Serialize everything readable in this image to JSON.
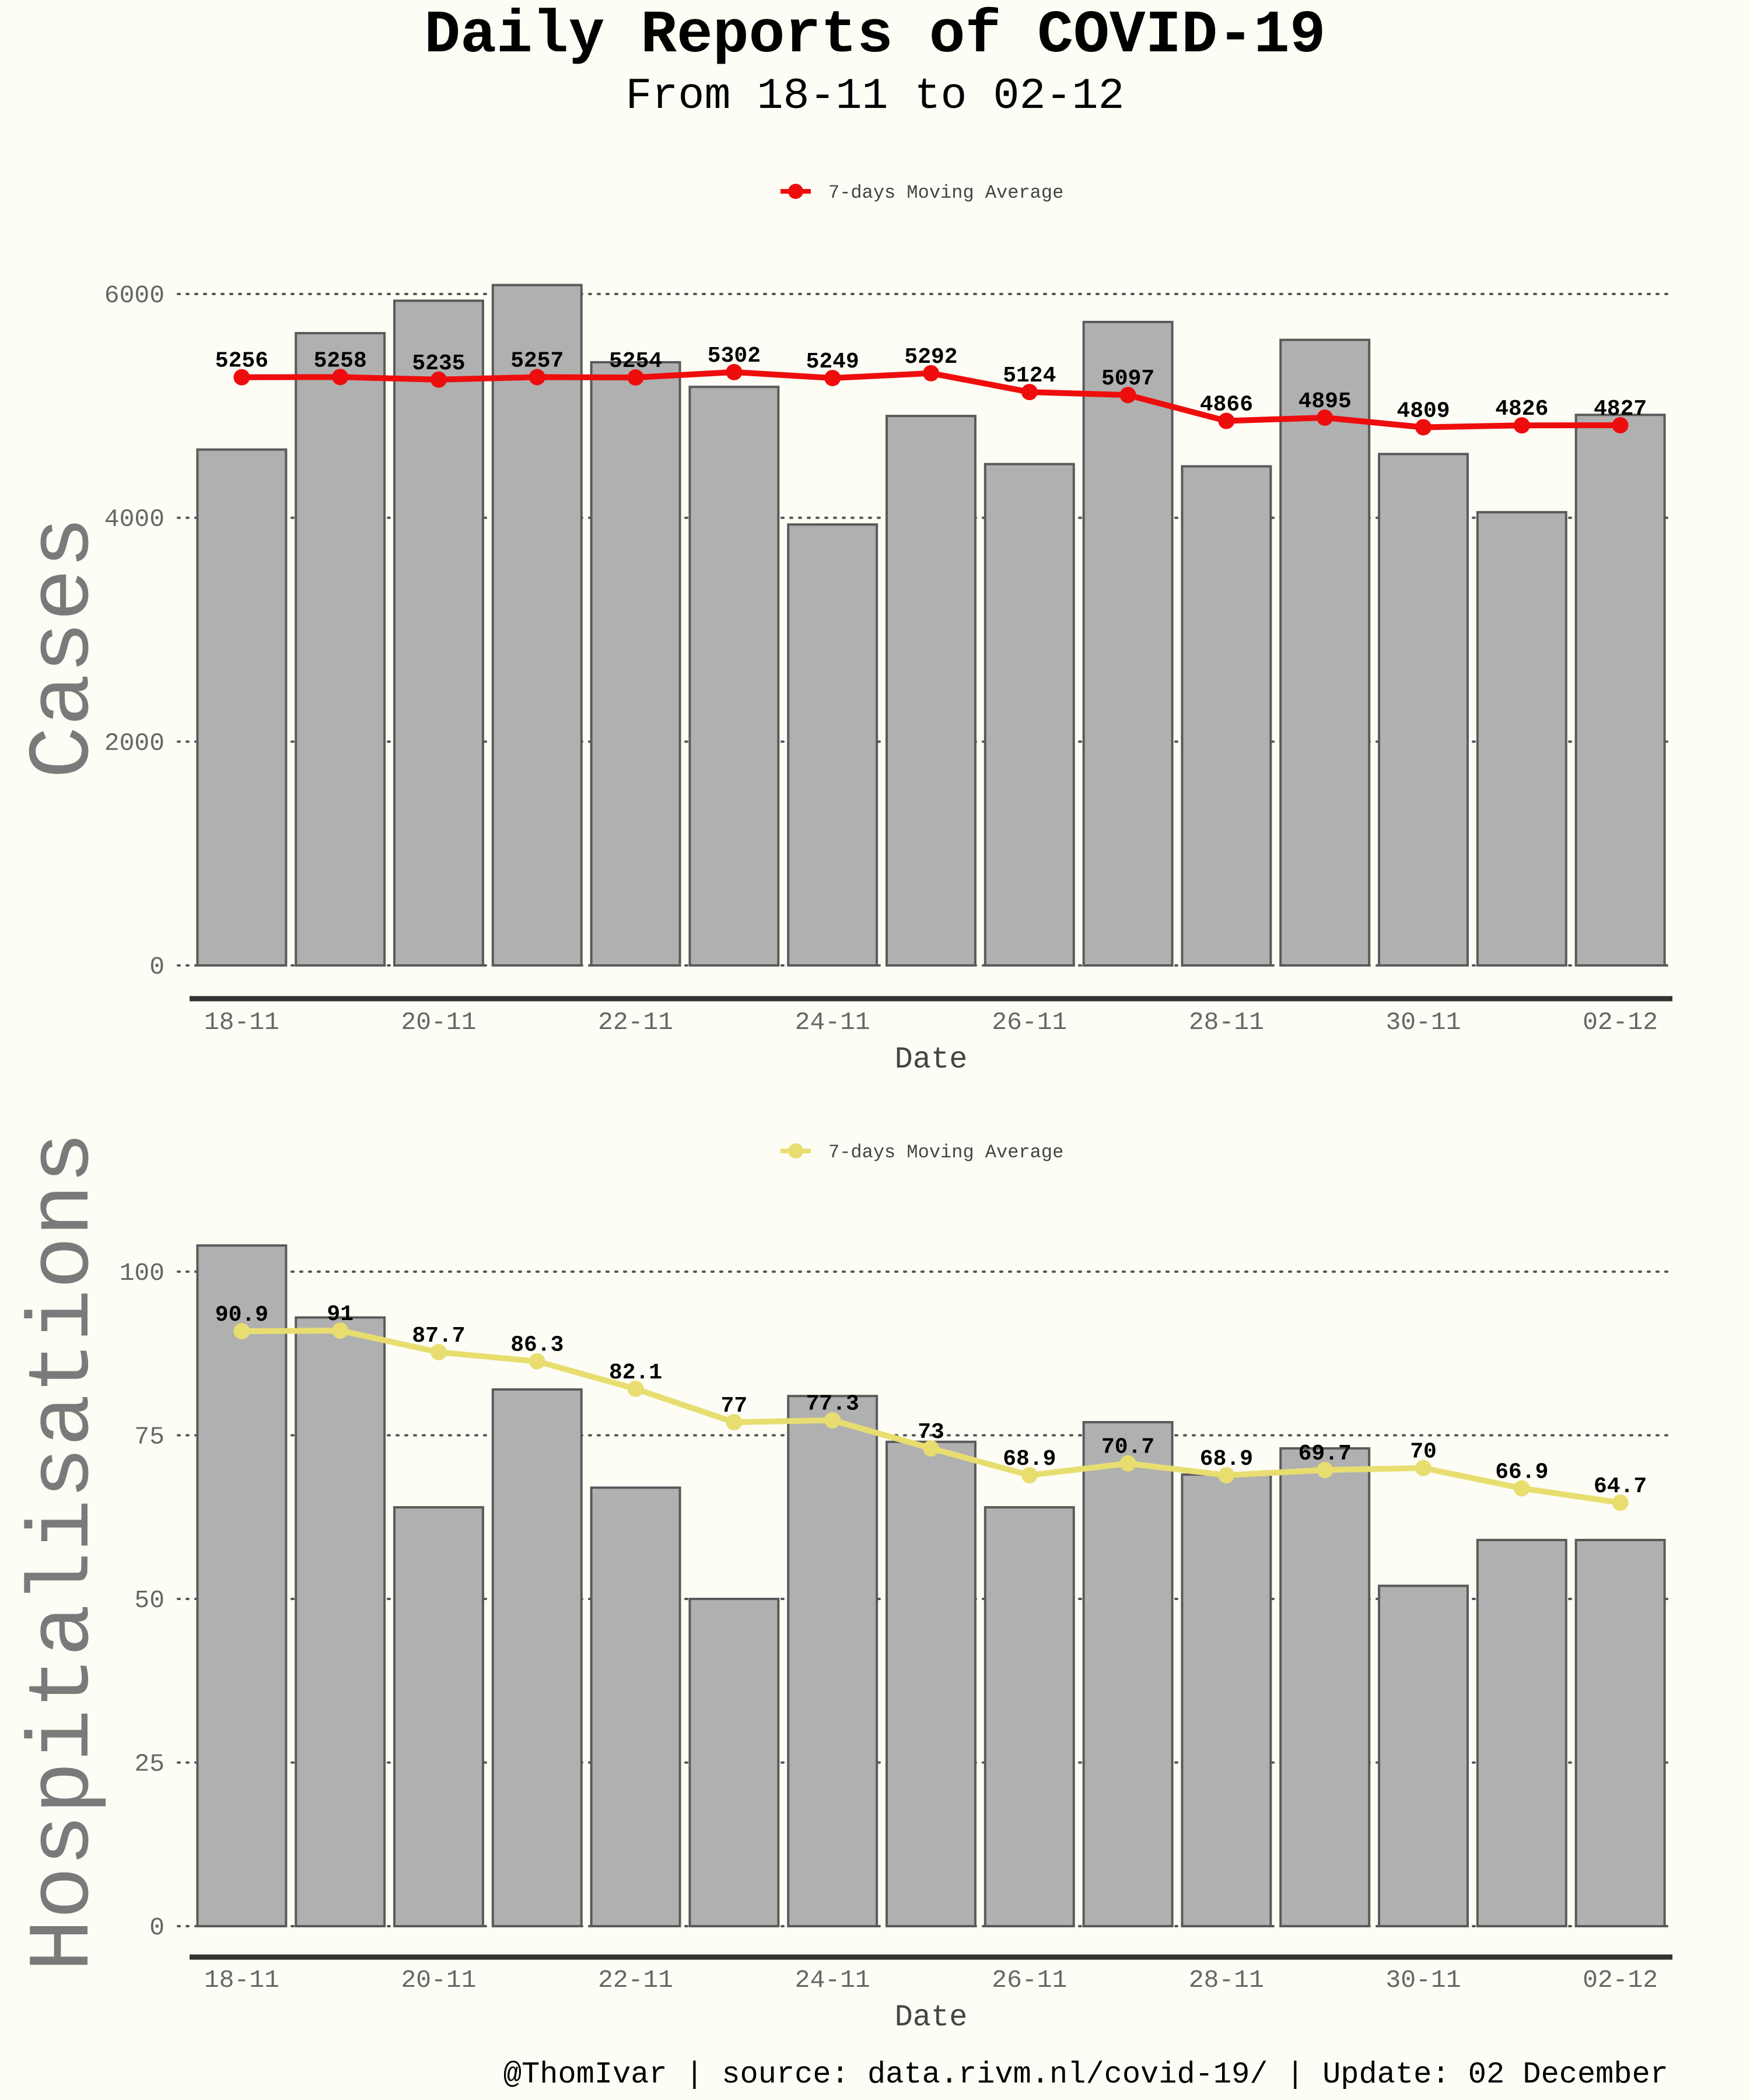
{
  "title": "Daily Reports of COVID-19",
  "subtitle": "From 18-11 to 02-12",
  "caption": "@ThomIvar | source: data.rivm.nl/covid-19/ | Update: 02 December",
  "colors": {
    "background": "#fdfdf5",
    "bar_fill": "#b0b0b0",
    "bar_stroke": "#5a5a5a",
    "cases_line": "#ee0d0d",
    "hosp_line": "#e8de70"
  },
  "chart_data": [
    {
      "type": "bar",
      "ylabel": "Cases",
      "xlabel": "Date",
      "ylim": [
        0,
        6000
      ],
      "yticks": [
        0,
        2000,
        4000,
        6000
      ],
      "grid": true,
      "legend_position": "top-center",
      "categories": [
        "18-11",
        "19-11",
        "20-11",
        "21-11",
        "22-11",
        "23-11",
        "24-11",
        "25-11",
        "26-11",
        "27-11",
        "28-11",
        "29-11",
        "30-11",
        "01-12",
        "02-12"
      ],
      "xtick_labels": [
        "18-11",
        "20-11",
        "22-11",
        "24-11",
        "26-11",
        "28-11",
        "30-11",
        "02-12"
      ],
      "series": [
        {
          "kind": "bar",
          "values": [
            4610,
            5650,
            5940,
            6080,
            5390,
            5170,
            3940,
            4910,
            4480,
            5750,
            4460,
            5590,
            4570,
            4050,
            4920
          ]
        },
        {
          "kind": "line",
          "name": "7-days Moving Average",
          "color": "#ee0d0d",
          "values": [
            5256,
            5258,
            5235,
            5257,
            5254,
            5302,
            5249,
            5292,
            5124,
            5097,
            4866,
            4895,
            4809,
            4826,
            4827
          ]
        }
      ]
    },
    {
      "type": "bar",
      "ylabel": "Hospitalisations",
      "xlabel": "Date",
      "ylim": [
        0,
        100
      ],
      "yticks": [
        0,
        25,
        50,
        75,
        100
      ],
      "grid": true,
      "legend_position": "top-center",
      "categories": [
        "18-11",
        "19-11",
        "20-11",
        "21-11",
        "22-11",
        "23-11",
        "24-11",
        "25-11",
        "26-11",
        "27-11",
        "28-11",
        "29-11",
        "30-11",
        "01-12",
        "02-12"
      ],
      "xtick_labels": [
        "18-11",
        "20-11",
        "22-11",
        "24-11",
        "26-11",
        "28-11",
        "30-11",
        "02-12"
      ],
      "series": [
        {
          "kind": "bar",
          "values": [
            104,
            93,
            64,
            82,
            67,
            50,
            81,
            74,
            64,
            77,
            69,
            73,
            52,
            59,
            59
          ]
        },
        {
          "kind": "line",
          "name": "7-days Moving Average",
          "color": "#e8de70",
          "values": [
            90.9,
            91,
            87.7,
            86.3,
            82.1,
            77,
            77.3,
            73,
            68.9,
            70.7,
            68.9,
            69.7,
            70,
            66.9,
            64.7
          ]
        }
      ]
    }
  ]
}
